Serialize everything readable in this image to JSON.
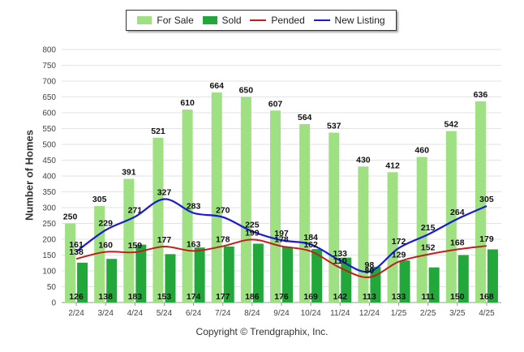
{
  "legend": {
    "for_sale": "For Sale",
    "sold": "Sold",
    "pended": "Pended",
    "new_listing": "New Listing"
  },
  "footer": {
    "copyright": "Copyright © Trendgraphix, Inc."
  },
  "colors": {
    "for_sale": "#9ee082",
    "sold": "#22a83a",
    "pended": "#c0201b",
    "new_listing": "#1a1ad6",
    "grid": "#e3e3e3"
  },
  "chart_data": {
    "type": "bar",
    "ylabel": "Number of Homes",
    "xlabel": "",
    "ylim": [
      0,
      800
    ],
    "yticks": [
      0,
      50,
      100,
      150,
      200,
      250,
      300,
      350,
      400,
      450,
      500,
      550,
      600,
      650,
      700,
      750,
      800
    ],
    "grid": true,
    "legend_position": "top-center",
    "categories": [
      "2/24",
      "3/24",
      "4/24",
      "5/24",
      "6/24",
      "7/24",
      "8/24",
      "9/24",
      "10/24",
      "11/24",
      "12/24",
      "1/25",
      "2/25",
      "3/25",
      "4/25"
    ],
    "series": [
      {
        "name": "For Sale",
        "type": "bar",
        "values": [
          250,
          305,
          391,
          521,
          610,
          664,
          650,
          607,
          564,
          537,
          430,
          412,
          460,
          542,
          636
        ]
      },
      {
        "name": "Sold",
        "type": "bar",
        "values": [
          126,
          138,
          183,
          153,
          174,
          177,
          186,
          176,
          169,
          142,
          113,
          133,
          111,
          150,
          168
        ]
      },
      {
        "name": "Pended",
        "type": "line",
        "values": [
          138,
          160,
          159,
          177,
          163,
          178,
          199,
          178,
          162,
          110,
          80,
          129,
          152,
          168,
          179
        ]
      },
      {
        "name": "New Listing",
        "type": "line",
        "values": [
          161,
          229,
          271,
          327,
          283,
          270,
          225,
          197,
          184,
          133,
          98,
          172,
          215,
          264,
          305
        ]
      }
    ]
  }
}
